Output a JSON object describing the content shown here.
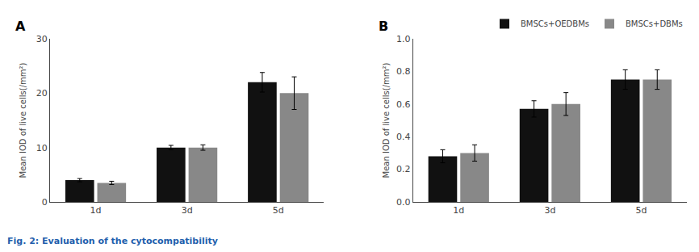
{
  "chart_data": [
    {
      "type": "bar",
      "title": "A",
      "categories": [
        "1d",
        "3d",
        "5d"
      ],
      "series": [
        {
          "name": "BMSCs+OEDBMs",
          "color": "#111111",
          "values": [
            4.0,
            10.0,
            22.0
          ],
          "errors": [
            0.3,
            0.4,
            1.8
          ]
        },
        {
          "name": "BMSCs+DBMs",
          "color": "#888888",
          "values": [
            3.5,
            10.0,
            20.0
          ],
          "errors": [
            0.3,
            0.5,
            3.0
          ]
        }
      ],
      "ylabel": "Mean IOD of live cells(/mm²)",
      "ylim": [
        0,
        30
      ],
      "yticks": [
        0,
        10,
        20,
        30
      ],
      "grid": false,
      "annotations": [
        {
          "text": "Fig. 2: Evaluation of the cytocompatibility",
          "color": "#1F5FAD"
        }
      ]
    },
    {
      "type": "bar",
      "title": "B",
      "categories": [
        "1d",
        "3d",
        "5d"
      ],
      "series": [
        {
          "name": "BMSCs+OEDBMs",
          "color": "#111111",
          "values": [
            0.28,
            0.57,
            0.75
          ],
          "errors": [
            0.04,
            0.05,
            0.06
          ]
        },
        {
          "name": "BMSCs+DBMs",
          "color": "#888888",
          "values": [
            0.3,
            0.6,
            0.75
          ],
          "errors": [
            0.05,
            0.07,
            0.06
          ]
        }
      ],
      "ylabel": "Mean IOD of live cells(/mm²)",
      "ylim": [
        0.0,
        1.0
      ],
      "yticks": [
        {
          "value": 0.0,
          "label": "0.0"
        },
        0.2,
        0.4,
        0.6,
        0.8,
        {
          "value": 1.0,
          "label": "1.0"
        }
      ],
      "grid": false,
      "legend": "upper right"
    }
  ]
}
